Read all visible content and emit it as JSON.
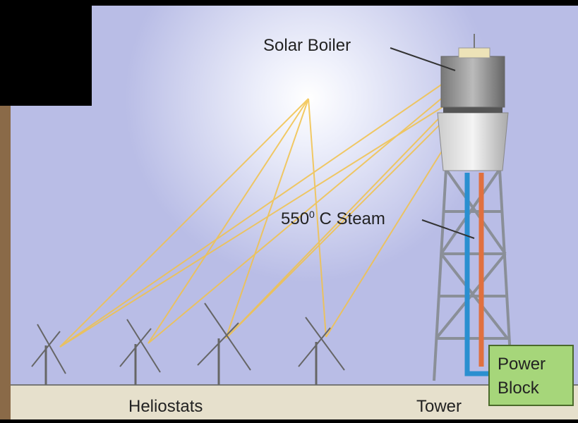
{
  "labels": {
    "boiler": "Solar Boiler",
    "steam": {
      "main": "550",
      "sup": "0",
      "rest": " C Steam"
    },
    "heliostats": "Heliostats",
    "tower": "Tower",
    "power_block": [
      "Power",
      "Block"
    ]
  }
}
